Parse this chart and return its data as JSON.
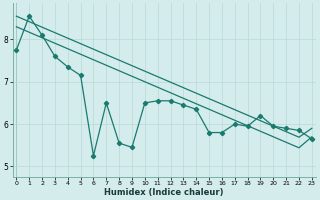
{
  "xlabel": "Humidex (Indice chaleur)",
  "background_color": "#d4ecec",
  "line_color": "#1a7a6e",
  "grid_color": "#b8d8d8",
  "line1_x": [
    0,
    1,
    2,
    3,
    4,
    5,
    6,
    7,
    8,
    9,
    10,
    11,
    12,
    13,
    14,
    15,
    16,
    17,
    18,
    19,
    20,
    21,
    22,
    23
  ],
  "line1_y": [
    8.3,
    8.17,
    8.04,
    7.91,
    7.78,
    7.65,
    7.52,
    7.39,
    7.26,
    7.13,
    7.0,
    6.87,
    6.74,
    6.61,
    6.48,
    6.35,
    6.22,
    6.09,
    5.96,
    5.83,
    5.7,
    5.57,
    5.44,
    5.7
  ],
  "line2_x": [
    0,
    1,
    2,
    3,
    4,
    5,
    6,
    7,
    8,
    9,
    10,
    11,
    12,
    13,
    14,
    15,
    16,
    17,
    18,
    19,
    20,
    21,
    22,
    23
  ],
  "line2_y": [
    8.55,
    8.42,
    8.29,
    8.16,
    8.03,
    7.9,
    7.77,
    7.64,
    7.51,
    7.38,
    7.25,
    7.12,
    6.99,
    6.86,
    6.73,
    6.6,
    6.47,
    6.34,
    6.21,
    6.08,
    5.95,
    5.82,
    5.69,
    5.9
  ],
  "data_x": [
    0,
    1,
    2,
    3,
    4,
    5,
    6,
    7,
    8,
    9,
    10,
    11,
    12,
    13,
    14,
    15,
    16,
    17,
    18,
    19,
    20,
    21,
    22,
    23
  ],
  "data_y": [
    7.75,
    8.55,
    8.1,
    7.6,
    7.35,
    7.15,
    5.25,
    6.5,
    5.55,
    5.45,
    6.5,
    6.55,
    6.55,
    6.45,
    6.35,
    5.8,
    5.8,
    6.0,
    5.95,
    6.2,
    5.95,
    5.9,
    5.85,
    5.65
  ],
  "ylim": [
    4.75,
    8.85
  ],
  "xlim": [
    -0.3,
    23.3
  ],
  "yticks": [
    5,
    6,
    7,
    8
  ],
  "xticks": [
    0,
    1,
    2,
    3,
    4,
    5,
    6,
    7,
    8,
    9,
    10,
    11,
    12,
    13,
    14,
    15,
    16,
    17,
    18,
    19,
    20,
    21,
    22,
    23
  ],
  "markersize": 2.2,
  "linewidth": 0.9
}
